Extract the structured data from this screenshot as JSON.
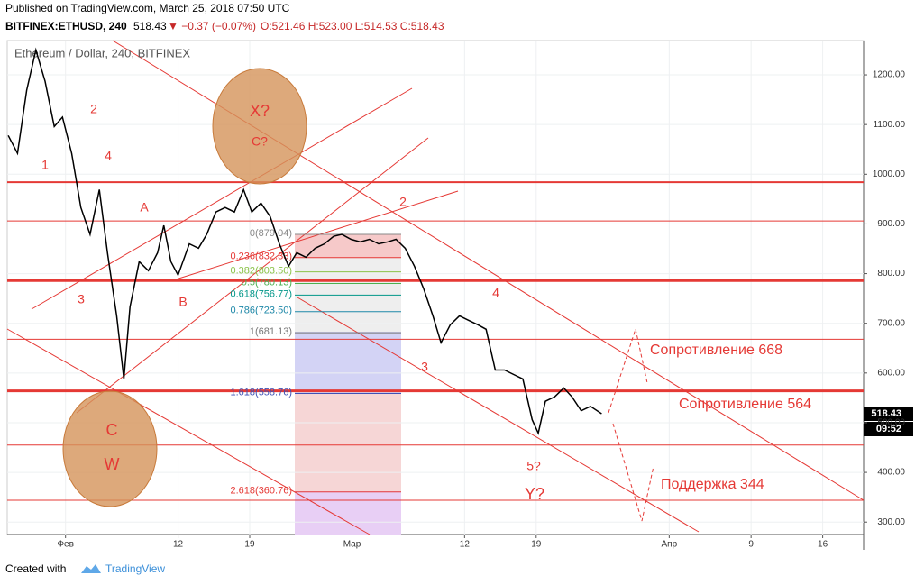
{
  "header": {
    "published": "Published on TradingView.com, March 25, 2018 07:50 UTC",
    "symbol": "BITFINEX:ETHUSD, 240",
    "last": "518.43",
    "change": "▼ −0.37 (−0.07%)",
    "ohlc": "O:521.46 H:523.00 L:514.53 C:518.43"
  },
  "footer": {
    "created": "Created with",
    "brand": "TradingView"
  },
  "chart_data": {
    "type": "line",
    "title": "Ethereum / Dollar, 240, BITFINEX",
    "color": "#000000",
    "x": [
      -5.6,
      -4.7,
      -3.8,
      -2.9,
      -2.0,
      -1.1,
      -0.3,
      0.6,
      1.5,
      2.4,
      3.3,
      4.1,
      5.0,
      5.7,
      6.3,
      7.2,
      8.1,
      9.0,
      9.6,
      10.3,
      11.0,
      12.1,
      13.0,
      13.8,
      14.7,
      15.6,
      16.5,
      17.4,
      18.2,
      19.1,
      20.0,
      20.9,
      21.8,
      22.6,
      23.5,
      24.4,
      25.3,
      26.2,
      27.0,
      27.9,
      28.8,
      29.7,
      30.6,
      31.5,
      32.3,
      33.2,
      34.1,
      35.0,
      35.9,
      36.7,
      37.6,
      38.5,
      39.4,
      40.3,
      41.1,
      42.0,
      42.9,
      43.8,
      44.7,
      45.6,
      46.2,
      46.9,
      47.8,
      48.7,
      49.5,
      50.4,
      51.3,
      52.4
    ],
    "values": [
      1078,
      1042,
      1169,
      1250,
      1187,
      1096,
      1115,
      1042,
      933,
      879,
      969,
      842,
      715,
      588,
      733,
      824,
      806,
      842,
      897,
      824,
      797,
      860,
      851,
      879,
      924,
      933,
      924,
      969,
      924,
      942,
      915,
      860,
      815,
      842,
      833,
      851,
      860,
      875,
      879,
      869,
      864,
      869,
      860,
      864,
      869,
      851,
      815,
      770,
      715,
      661,
      697,
      715,
      706,
      697,
      688,
      606,
      606,
      597,
      588,
      506,
      479,
      543,
      552,
      570,
      552,
      524,
      533,
      518
    ],
    "xlim": [
      -5.7,
      78
    ],
    "ylim": [
      275,
      1269
    ],
    "xticks": [
      {
        "value": 0,
        "label": "Фев"
      },
      {
        "value": 11,
        "label": "12"
      },
      {
        "value": 18,
        "label": "19"
      },
      {
        "value": 28,
        "label": "Мар"
      },
      {
        "value": 39,
        "label": "12"
      },
      {
        "value": 46,
        "label": "19"
      },
      {
        "value": 59,
        "label": "Апр"
      },
      {
        "value": 67,
        "label": "9"
      },
      {
        "value": 74,
        "label": "16"
      }
    ],
    "yticks": [
      {
        "value": 300,
        "label": "300.00"
      },
      {
        "value": 400,
        "label": "400.00"
      },
      {
        "value": 500,
        "label": "500.00"
      },
      {
        "value": 600,
        "label": "600.00"
      },
      {
        "value": 700,
        "label": "700.00"
      },
      {
        "value": 800,
        "label": "800.00"
      },
      {
        "value": 900,
        "label": "900.00"
      },
      {
        "value": 1000,
        "label": "1000.00"
      },
      {
        "value": 1100,
        "label": "1100.00"
      },
      {
        "value": 1200,
        "label": "1200.00"
      }
    ],
    "grid": true,
    "hlines": [
      {
        "value": 984,
        "width": 2
      },
      {
        "value": 906,
        "width": 1
      },
      {
        "value": 786,
        "width": 3
      },
      {
        "value": 668,
        "width": 1
      },
      {
        "value": 564,
        "width": 3
      },
      {
        "value": 455,
        "width": 1
      },
      {
        "value": 344,
        "width": 1
      }
    ],
    "fib": [
      {
        "label": "0(879.04)",
        "value": 879.04,
        "color": "#888888"
      },
      {
        "label": "0.236(832.33)",
        "value": 832.33,
        "color": "#e53935"
      },
      {
        "label": "0.382(803.50)",
        "value": 803.5,
        "color": "#8bc34a"
      },
      {
        "label": "0.5(780.13)",
        "value": 780.13,
        "color": "#4caf50"
      },
      {
        "label": "0.618(756.77)",
        "value": 756.77,
        "color": "#009688"
      },
      {
        "label": "0.786(723.50)",
        "value": 723.5,
        "color": "#1e88a8"
      },
      {
        "label": "1(681.13)",
        "value": 681.13,
        "color": "#777777"
      },
      {
        "label": "1.618(558.76)",
        "value": 558.76,
        "color": "#3f51b5"
      },
      {
        "label": "2.618(360.76)",
        "value": 360.76,
        "color": "#e53935"
      }
    ],
    "annotations": [
      "2",
      "1",
      "4",
      "3",
      "A",
      "B",
      "X?",
      "C?",
      "C",
      "W",
      "2",
      "4",
      "3",
      "5?",
      "Y?",
      "Сопротивление 668",
      "Сопротивление 564",
      "Поддержка 344"
    ],
    "last_price": {
      "value": "518.43",
      "time": "09:52"
    }
  }
}
